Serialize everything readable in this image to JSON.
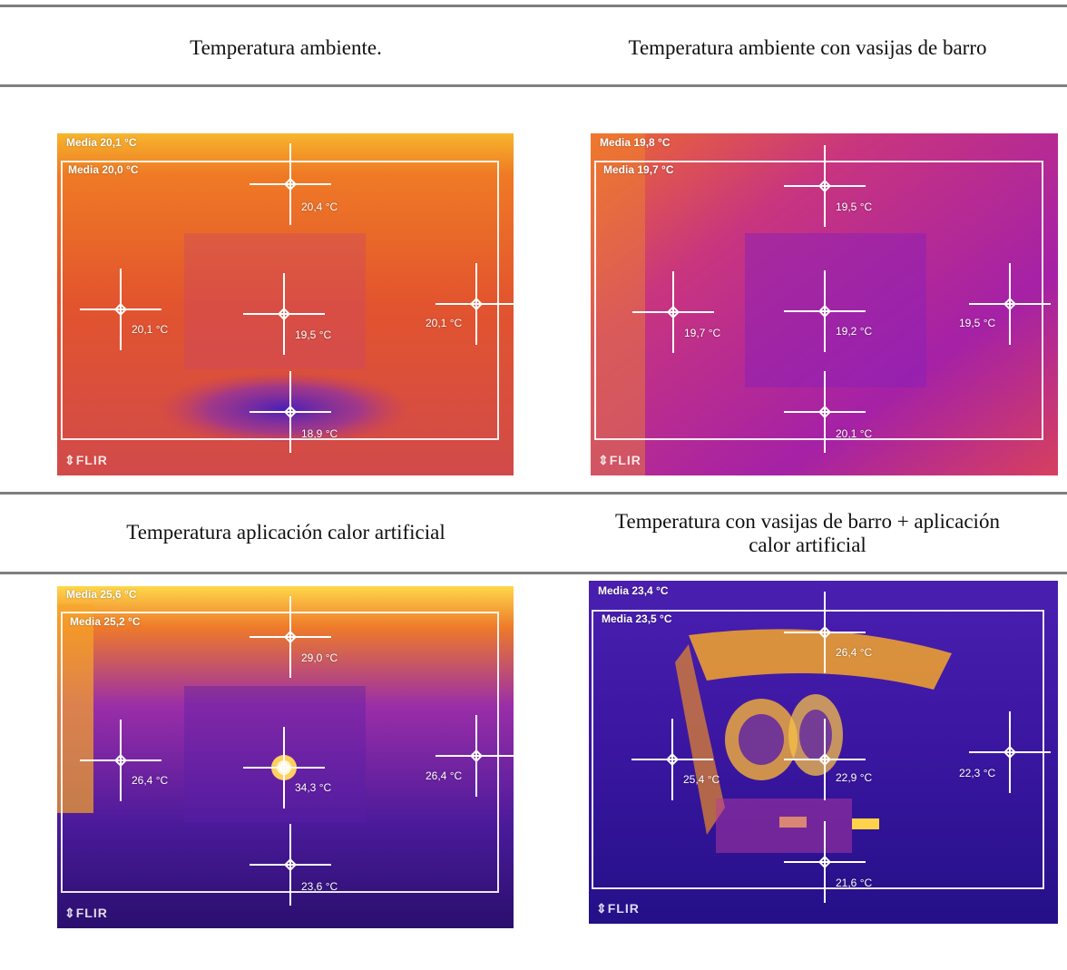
{
  "captions": {
    "top_left": "Temperatura ambiente.",
    "top_right": "Temperatura ambiente con vasijas de barro",
    "bottom_left": "Temperatura aplicación calor artificial",
    "bottom_right_line1": "Temperatura con vasijas de barro + aplicación",
    "bottom_right_line2": "calor artificial"
  },
  "images": [
    {
      "media_outer": "Media 20,1 °C",
      "media_inner": "Media 20,0 °C",
      "spots": [
        "20,4 °C",
        "20,1 °C",
        "19,5 °C",
        "20,1 °C",
        "18,9 °C"
      ],
      "logo": "FLIR",
      "palette": [
        "#f4a12a",
        "#e8531f",
        "#c23a6a",
        "#5a1fb4"
      ]
    },
    {
      "media_outer": "Media 19,8 °C",
      "media_inner": "Media 19,7 °C",
      "spots": [
        "19,5 °C",
        "19,7 °C",
        "19,2 °C",
        "19,5 °C",
        "20,1 °C"
      ],
      "logo": "FLIR",
      "palette": [
        "#ef7a2a",
        "#d2357b",
        "#a11fa8",
        "#8a1fb8"
      ]
    },
    {
      "media_outer": "Media 25,6 °C",
      "media_inner": "Media 25,2 °C",
      "spots": [
        "29,0 °C",
        "26,4 °C",
        "34,3 °C",
        "26,4 °C",
        "23,6 °C"
      ],
      "logo": "FLIR",
      "palette": [
        "#ffd23f",
        "#e8611f",
        "#7a22b8",
        "#2a0f6e"
      ]
    },
    {
      "media_outer": "Media 23,4 °C",
      "media_inner": "Media 23,5 °C",
      "spots": [
        "26,4 °C",
        "25,4 °C",
        "22,9 °C",
        "22,3 °C",
        "21,6 °C"
      ],
      "logo": "FLIR",
      "palette": [
        "#ffe066",
        "#f08a20",
        "#6a1fb4",
        "#2a0f8a"
      ]
    }
  ]
}
